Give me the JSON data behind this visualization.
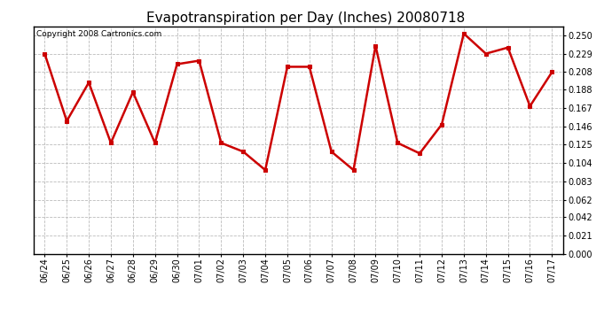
{
  "title": "Evapotranspiration per Day (Inches) 20080718",
  "copyright_text": "Copyright 2008 Cartronics.com",
  "dates": [
    "06/24",
    "06/25",
    "06/26",
    "06/27",
    "06/28",
    "06/29",
    "06/30",
    "07/01",
    "07/02",
    "07/03",
    "07/04",
    "07/05",
    "07/06",
    "07/07",
    "07/08",
    "07/09",
    "07/10",
    "07/11",
    "07/12",
    "07/13",
    "07/14",
    "07/15",
    "07/16",
    "07/17"
  ],
  "values": [
    0.229,
    0.152,
    0.196,
    0.127,
    0.185,
    0.127,
    0.217,
    0.221,
    0.127,
    0.117,
    0.096,
    0.214,
    0.214,
    0.117,
    0.096,
    0.238,
    0.127,
    0.115,
    0.148,
    0.252,
    0.229,
    0.236,
    0.169,
    0.208
  ],
  "line_color": "#cc0000",
  "marker_color": "#cc0000",
  "bg_color": "#ffffff",
  "grid_color": "#bbbbbb",
  "yticks": [
    0.0,
    0.021,
    0.042,
    0.062,
    0.083,
    0.104,
    0.125,
    0.146,
    0.167,
    0.188,
    0.208,
    0.229,
    0.25
  ],
  "ylim": [
    0.0,
    0.26
  ],
  "title_fontsize": 11,
  "tick_fontsize": 7,
  "copyright_fontsize": 6.5
}
